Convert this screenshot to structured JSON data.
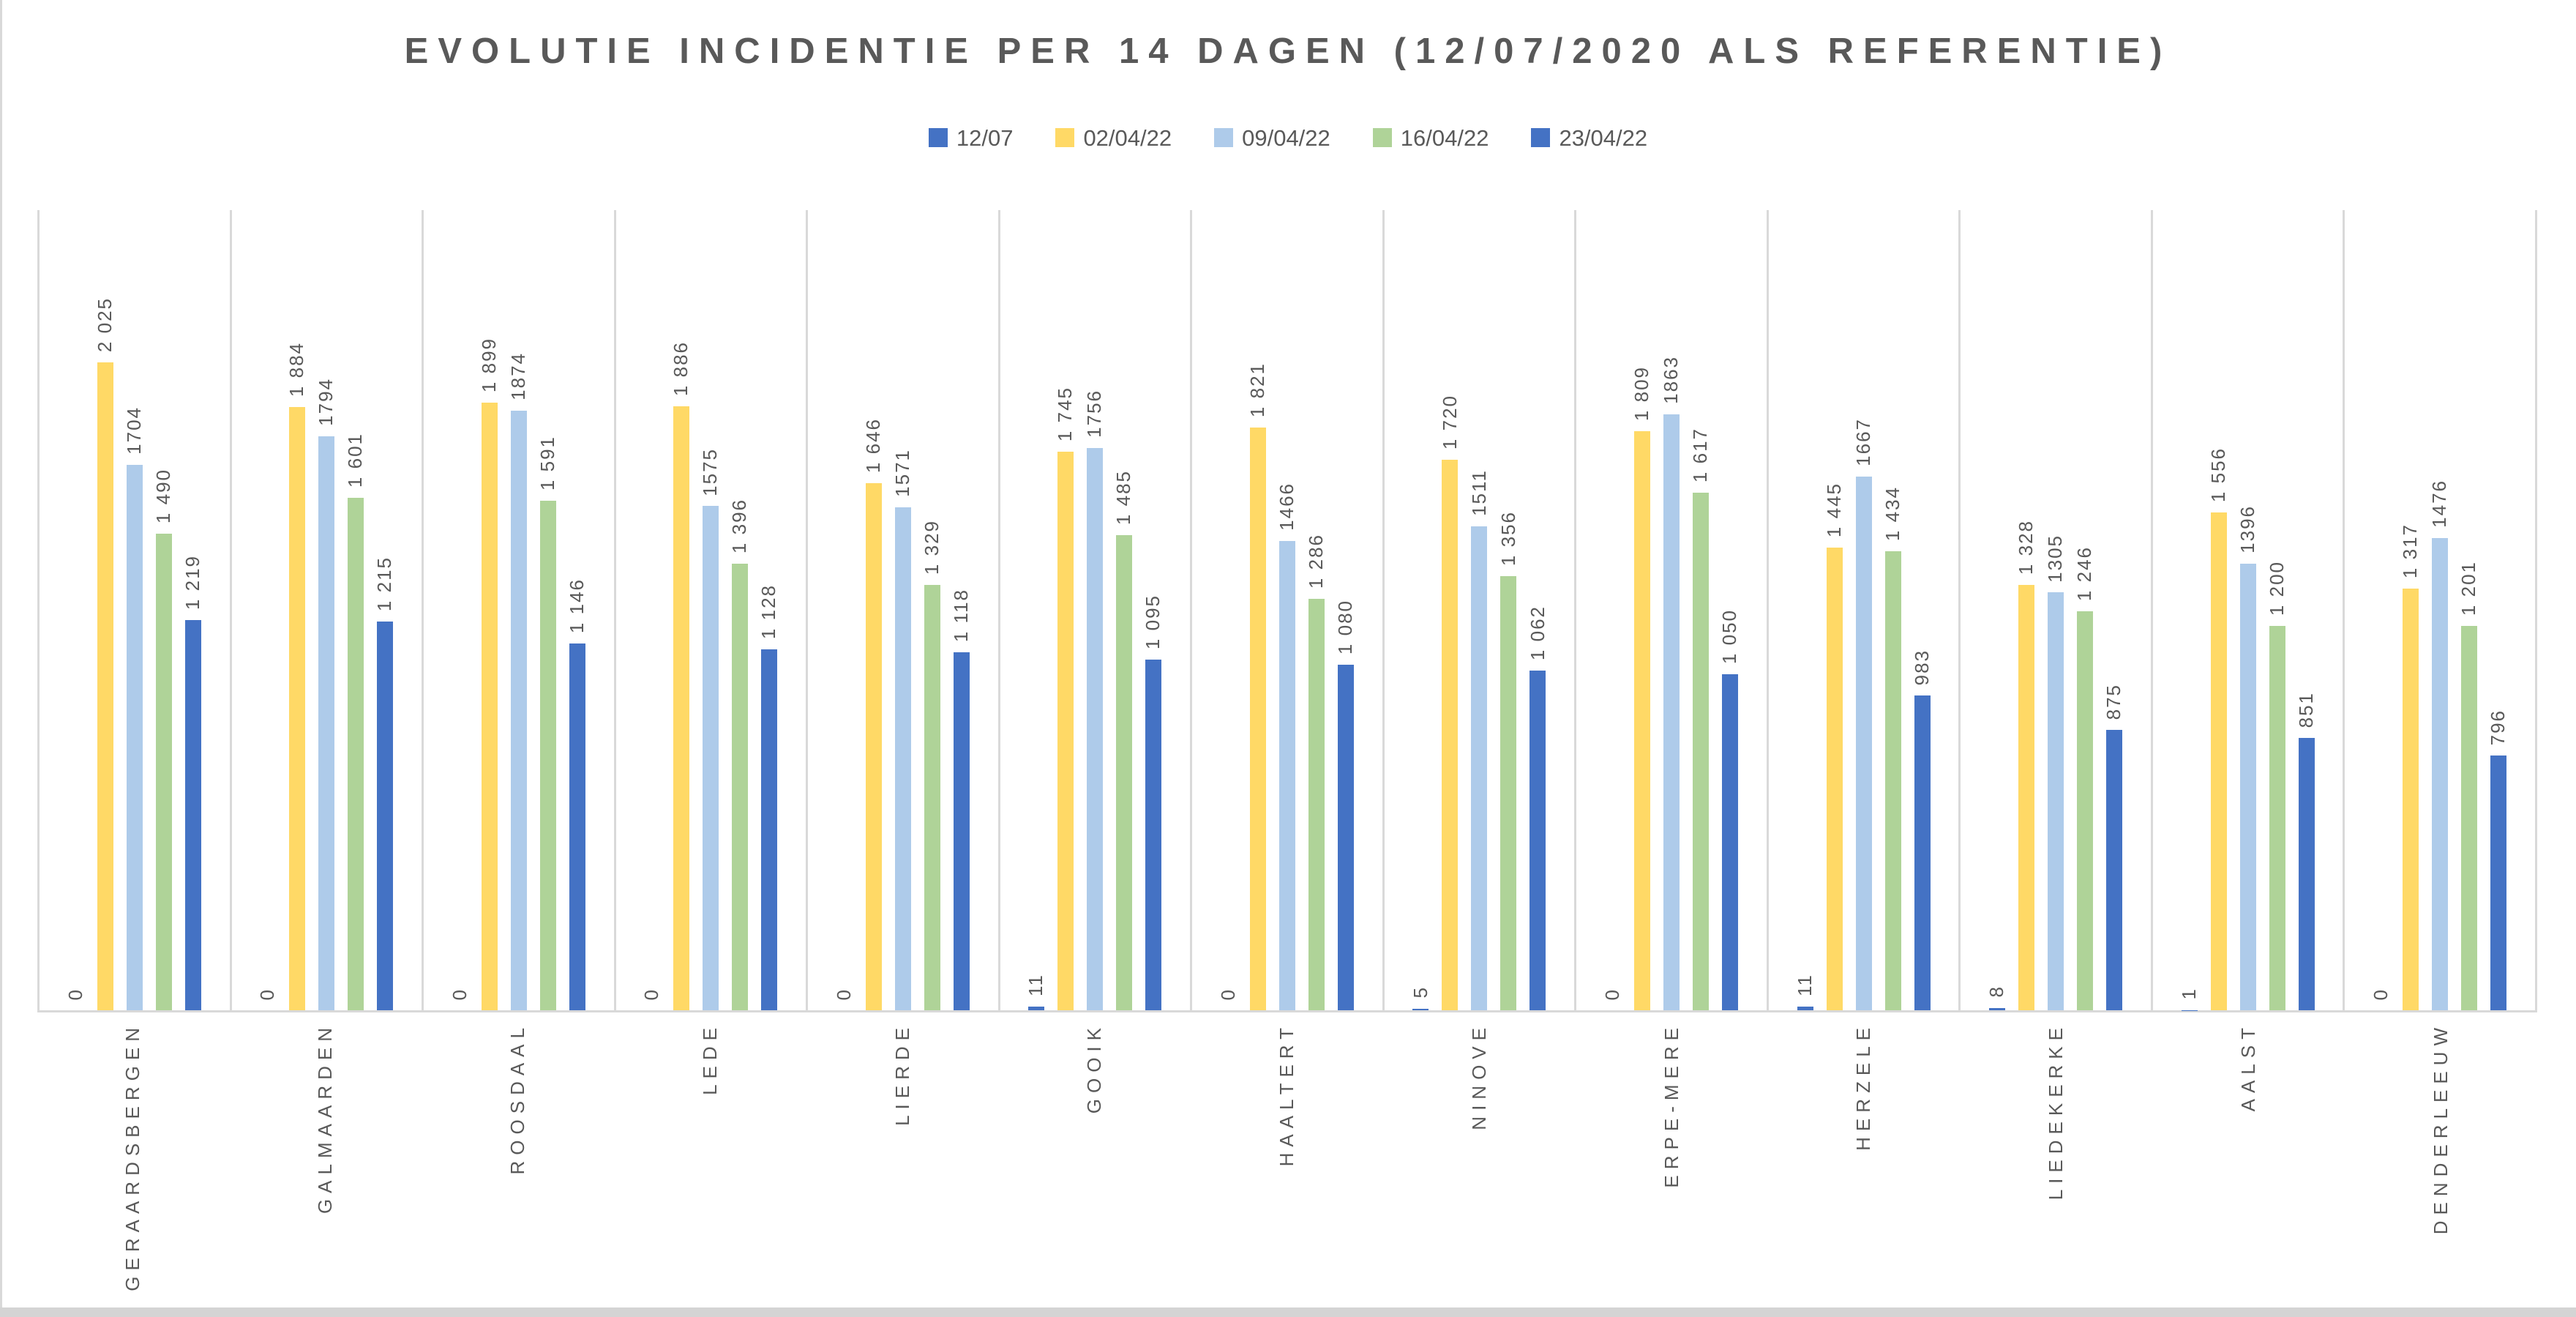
{
  "window": {
    "background": "#FFFFFF",
    "left_edge_color": "#D9D9D9",
    "bottom_strip_color": "#D4D4D4"
  },
  "title": {
    "text": "EVOLUTIE INCIDENTIE PER 14 DAGEN (12/07/2020 ALS REFERENTIE)",
    "color": "#595959"
  },
  "legend": {
    "position": "top",
    "items": [
      {
        "label": "12/07",
        "color": "#4472C4"
      },
      {
        "label": "02/04/22",
        "color": "#FFD966"
      },
      {
        "label": "09/04/22",
        "color": "#AECBEA"
      },
      {
        "label": "16/04/22",
        "color": "#AFD398"
      },
      {
        "label": "23/04/22",
        "color": "#4472C4"
      }
    ]
  },
  "chart_data": {
    "type": "bar",
    "title": "EVOLUTIE INCIDENTIE PER 14 DAGEN (12/07/2020 ALS REFERENTIE)",
    "categories": [
      "GERAARDSBERGEN",
      "GALMAARDEN",
      "ROOSDAAL",
      "LEDE",
      "LIERDE",
      "GOOIK",
      "HAALTERT",
      "NINOVE",
      "ERPE-MERE",
      "HERZELE",
      "LIEDEKERKE",
      "AALST",
      "DENDERLEEUW"
    ],
    "series": [
      {
        "name": "12/07",
        "color": "#4472C4",
        "values": [
          0,
          0,
          0,
          0,
          0,
          11,
          0,
          5,
          0,
          11,
          8,
          1,
          0
        ],
        "labels": [
          "0",
          "0",
          "0",
          "0",
          "0",
          "11",
          "0",
          "5",
          "0",
          "11",
          "8",
          "1",
          "0"
        ]
      },
      {
        "name": "02/04/22",
        "color": "#FFD966",
        "values": [
          2025,
          1884,
          1899,
          1886,
          1646,
          1745,
          1821,
          1720,
          1809,
          1445,
          1328,
          1556,
          1317
        ],
        "labels": [
          "2 025",
          "1 884",
          "1 899",
          "1 886",
          "1 646",
          "1 745",
          "1 821",
          "1 720",
          "1 809",
          "1 445",
          "1 328",
          "1 556",
          "1 317"
        ]
      },
      {
        "name": "09/04/22",
        "color": "#AECBEA",
        "values": [
          1704,
          1794,
          1874,
          1575,
          1571,
          1756,
          1466,
          1511,
          1863,
          1667,
          1305,
          1396,
          1476
        ],
        "labels": [
          "1704",
          "1794",
          "1874",
          "1575",
          "1571",
          "1756",
          "1466",
          "1511",
          "1863",
          "1667",
          "1305",
          "1396",
          "1476"
        ]
      },
      {
        "name": "16/04/22",
        "color": "#AFD398",
        "values": [
          1490,
          1601,
          1591,
          1396,
          1329,
          1485,
          1286,
          1356,
          1617,
          1434,
          1246,
          1200,
          1201
        ],
        "labels": [
          "1 490",
          "1 601",
          "1 591",
          "1 396",
          "1 329",
          "1 485",
          "1 286",
          "1 356",
          "1 617",
          "1 434",
          "1 246",
          "1 200",
          "1 201"
        ]
      },
      {
        "name": "23/04/22",
        "color": "#4472C4",
        "values": [
          1219,
          1215,
          1146,
          1128,
          1118,
          1095,
          1080,
          1062,
          1050,
          983,
          875,
          851,
          796
        ],
        "labels": [
          "1 219",
          "1 215",
          "1 146",
          "1 128",
          "1 118",
          "1 095",
          "1 080",
          "1 062",
          "1 050",
          "983",
          "875",
          "851",
          "796"
        ]
      }
    ],
    "ylim": [
      0,
      2500
    ],
    "xlabel": "",
    "ylabel": "",
    "y_axis_labels_visible": false,
    "grid": "vertical-category-separators",
    "gridline_color": "#D9D9D9",
    "axis_line_color": "#D9D9D9",
    "value_label_color": "#595959",
    "category_label_color": "#595959",
    "value_labels_rotated": true,
    "category_labels_rotated": true,
    "legend_position": "top"
  }
}
